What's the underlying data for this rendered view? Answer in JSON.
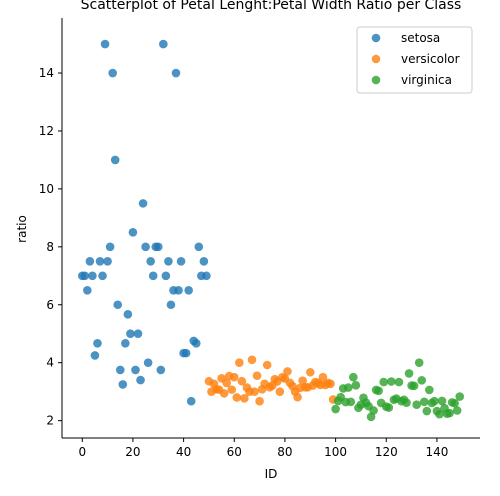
{
  "chart_data": {
    "type": "scatter",
    "title": "Scatterplot of Petal Lenght:Petal Width Ratio per Class",
    "xlabel": "ID",
    "ylabel": "ratio",
    "xlim": [
      -8,
      157
    ],
    "ylim": [
      1.4,
      15.9
    ],
    "xticks": [
      0,
      20,
      40,
      60,
      80,
      100,
      120,
      140
    ],
    "yticks": [
      2,
      4,
      6,
      8,
      10,
      12,
      14
    ],
    "grid": false,
    "legend_position": "top-right",
    "series": [
      {
        "name": "setosa",
        "color": "#1f77b4",
        "x": [
          0,
          1,
          2,
          3,
          4,
          5,
          6,
          7,
          8,
          9,
          10,
          11,
          12,
          13,
          14,
          15,
          16,
          17,
          18,
          19,
          20,
          21,
          22,
          23,
          24,
          25,
          26,
          27,
          28,
          29,
          30,
          31,
          32,
          33,
          34,
          35,
          36,
          37,
          38,
          39,
          40,
          41,
          42,
          43,
          44,
          45,
          46,
          47,
          48,
          49
        ],
        "y": [
          7.0,
          7.0,
          6.5,
          7.5,
          7.0,
          4.25,
          4.67,
          7.5,
          7.0,
          15.0,
          7.5,
          8.0,
          14.0,
          11.0,
          6.0,
          3.75,
          3.25,
          4.67,
          5.67,
          5.0,
          8.5,
          3.75,
          5.0,
          3.4,
          9.5,
          8.0,
          4.0,
          7.5,
          7.0,
          8.0,
          8.0,
          3.75,
          15.0,
          7.0,
          7.5,
          6.0,
          6.5,
          14.0,
          6.5,
          7.5,
          4.33,
          4.33,
          6.5,
          2.67,
          4.75,
          4.67,
          8.0,
          7.0,
          7.5,
          7.0
        ]
      },
      {
        "name": "versicolor",
        "color": "#ff7f0e",
        "x": [
          50,
          51,
          52,
          53,
          54,
          55,
          56,
          57,
          58,
          59,
          60,
          61,
          62,
          63,
          64,
          65,
          66,
          67,
          68,
          69,
          70,
          71,
          72,
          73,
          74,
          75,
          76,
          77,
          78,
          79,
          80,
          81,
          82,
          83,
          84,
          85,
          86,
          87,
          88,
          89,
          90,
          91,
          92,
          93,
          94,
          95,
          96,
          97,
          98,
          99
        ],
        "y": [
          3.36,
          3.0,
          3.27,
          3.08,
          3.07,
          3.46,
          2.94,
          3.3,
          3.54,
          3.07,
          3.5,
          2.8,
          4.0,
          3.36,
          2.77,
          3.14,
          3.0,
          4.1,
          3.0,
          3.55,
          2.67,
          3.08,
          3.27,
          3.92,
          3.15,
          3.21,
          3.43,
          3.35,
          3.0,
          3.5,
          3.45,
          3.7,
          3.3,
          3.19,
          3.0,
          2.81,
          3.13,
          3.38,
          3.15,
          3.15,
          3.67,
          3.21,
          3.33,
          3.3,
          3.23,
          3.5,
          3.23,
          3.3,
          3.27,
          2.73
        ]
      },
      {
        "name": "virginica",
        "color": "#2ca02c",
        "x": [
          100,
          101,
          102,
          103,
          104,
          105,
          106,
          107,
          108,
          109,
          110,
          111,
          112,
          113,
          114,
          115,
          116,
          117,
          118,
          119,
          120,
          121,
          122,
          123,
          124,
          125,
          126,
          127,
          128,
          129,
          130,
          131,
          132,
          133,
          134,
          135,
          136,
          137,
          138,
          139,
          140,
          141,
          142,
          143,
          144,
          145,
          146,
          147,
          148,
          149
        ],
        "y": [
          2.4,
          2.68,
          2.81,
          3.11,
          2.64,
          3.14,
          2.65,
          3.5,
          3.22,
          2.44,
          2.55,
          2.79,
          2.62,
          2.5,
          2.13,
          2.35,
          3.06,
          3.03,
          2.61,
          3.33,
          2.48,
          2.45,
          3.35,
          2.72,
          2.76,
          3.33,
          2.67,
          2.72,
          2.62,
          3.63,
          3.21,
          3.2,
          2.55,
          4.0,
          3.39,
          2.65,
          2.33,
          3.06,
          2.61,
          2.67,
          2.33,
          2.22,
          2.68,
          2.43,
          2.24,
          2.26,
          2.63,
          2.6,
          2.35,
          2.83
        ]
      }
    ]
  }
}
